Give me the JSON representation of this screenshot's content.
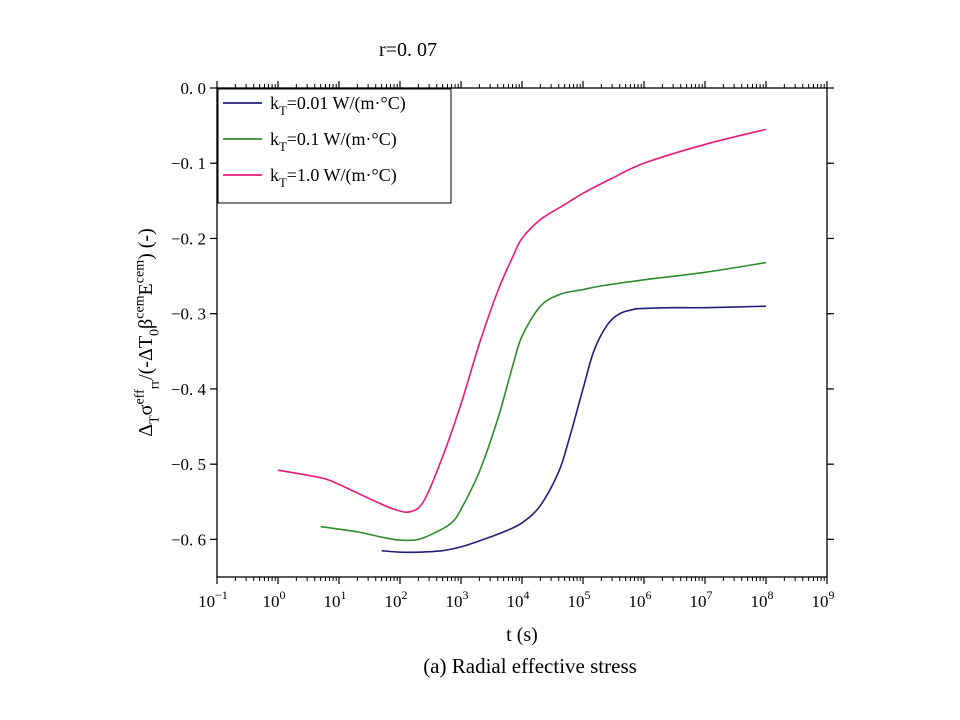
{
  "figure": {
    "top_label": "r=0. 07",
    "caption": "(a) Radial effective stress"
  },
  "chart_data": {
    "type": "line",
    "xscale": "log",
    "xlim": [
      0.1,
      1000000000
    ],
    "ylim": [
      -0.65,
      0.0
    ],
    "xlabel": "t (s)",
    "ylabel": {
      "parts": [
        {
          "t": "Δ"
        },
        {
          "t": "T",
          "pos": "sub"
        },
        {
          "t": "σ"
        },
        {
          "t": "eff",
          "pos": "sup"
        },
        {
          "t": "rr",
          "pos": "sub"
        },
        {
          "t": "/(-ΔT"
        },
        {
          "t": "0",
          "pos": "sub"
        },
        {
          "t": "β"
        },
        {
          "t": "cem",
          "pos": "sup"
        },
        {
          "t": "E"
        },
        {
          "t": "cem",
          "pos": "sup"
        },
        {
          "t": ") (-)"
        }
      ]
    },
    "x_ticks": [
      {
        "base": "10",
        "exp": "−1",
        "value": 0.1
      },
      {
        "base": "10",
        "exp": "0",
        "value": 1
      },
      {
        "base": "10",
        "exp": "1",
        "value": 10
      },
      {
        "base": "10",
        "exp": "2",
        "value": 100
      },
      {
        "base": "10",
        "exp": "3",
        "value": 1000
      },
      {
        "base": "10",
        "exp": "4",
        "value": 10000
      },
      {
        "base": "10",
        "exp": "5",
        "value": 100000
      },
      {
        "base": "10",
        "exp": "6",
        "value": 1000000
      },
      {
        "base": "10",
        "exp": "7",
        "value": 10000000
      },
      {
        "base": "10",
        "exp": "8",
        "value": 100000000
      },
      {
        "base": "10",
        "exp": "9",
        "value": 1000000000
      }
    ],
    "y_ticks": [
      {
        "label": "0. 0",
        "value": 0.0
      },
      {
        "label": "−0. 1",
        "value": -0.1
      },
      {
        "label": "−0. 2",
        "value": -0.2
      },
      {
        "label": "−0. 3",
        "value": -0.3
      },
      {
        "label": "−0. 4",
        "value": -0.4
      },
      {
        "label": "−0. 5",
        "value": -0.5
      },
      {
        "label": "−0. 6",
        "value": -0.6
      }
    ],
    "legend_position": "top-left",
    "series": [
      {
        "name": "kT=0.01 W/(m·°C)",
        "legend_parts": [
          {
            "t": "k"
          },
          {
            "t": "T",
            "pos": "sub"
          },
          {
            "t": "=0.01 W/(m·°C)"
          }
        ],
        "color": "#1f1f7a",
        "x": [
          50,
          100,
          200,
          500,
          1000,
          2000,
          5000,
          10000,
          20000,
          40000,
          60000,
          100000,
          150000,
          250000,
          400000,
          700000,
          1000000,
          3000000,
          10000000,
          100000000
        ],
        "y": [
          -0.615,
          -0.617,
          -0.617,
          -0.615,
          -0.61,
          -0.602,
          -0.59,
          -0.578,
          -0.555,
          -0.51,
          -0.465,
          -0.4,
          -0.35,
          -0.315,
          -0.3,
          -0.294,
          -0.293,
          -0.292,
          -0.292,
          -0.29
        ]
      },
      {
        "name": "kT=0.1 W/(m·°C)",
        "legend_parts": [
          {
            "t": "k"
          },
          {
            "t": "T",
            "pos": "sub"
          },
          {
            "t": "=0.1 W/(m·°C)"
          }
        ],
        "color": "#2e8b2e",
        "x": [
          5,
          20,
          50,
          100,
          200,
          400,
          700,
          1000,
          2000,
          4000,
          7000,
          10000,
          20000,
          40000,
          70000,
          100000,
          200000,
          1000000,
          10000000,
          100000000
        ],
        "y": [
          -0.583,
          -0.59,
          -0.597,
          -0.601,
          -0.6,
          -0.59,
          -0.578,
          -0.56,
          -0.51,
          -0.44,
          -0.37,
          -0.33,
          -0.29,
          -0.275,
          -0.27,
          -0.268,
          -0.263,
          -0.255,
          -0.245,
          -0.232
        ]
      },
      {
        "name": "kT=1.0 W/(m·°C)",
        "legend_parts": [
          {
            "t": "k"
          },
          {
            "t": "T",
            "pos": "sub"
          },
          {
            "t": "=1.0 W/(m·°C)"
          }
        ],
        "color": "#e8197a",
        "x": [
          1,
          5,
          10,
          30,
          80,
          150,
          250,
          500,
          1000,
          2000,
          4000,
          7000,
          10000,
          20000,
          50000,
          100000,
          300000,
          1000000,
          10000000,
          100000000
        ],
        "y": [
          -0.508,
          -0.518,
          -0.527,
          -0.545,
          -0.56,
          -0.563,
          -0.548,
          -0.49,
          -0.42,
          -0.34,
          -0.27,
          -0.225,
          -0.2,
          -0.175,
          -0.155,
          -0.14,
          -0.12,
          -0.1,
          -0.075,
          -0.055
        ]
      }
    ]
  }
}
